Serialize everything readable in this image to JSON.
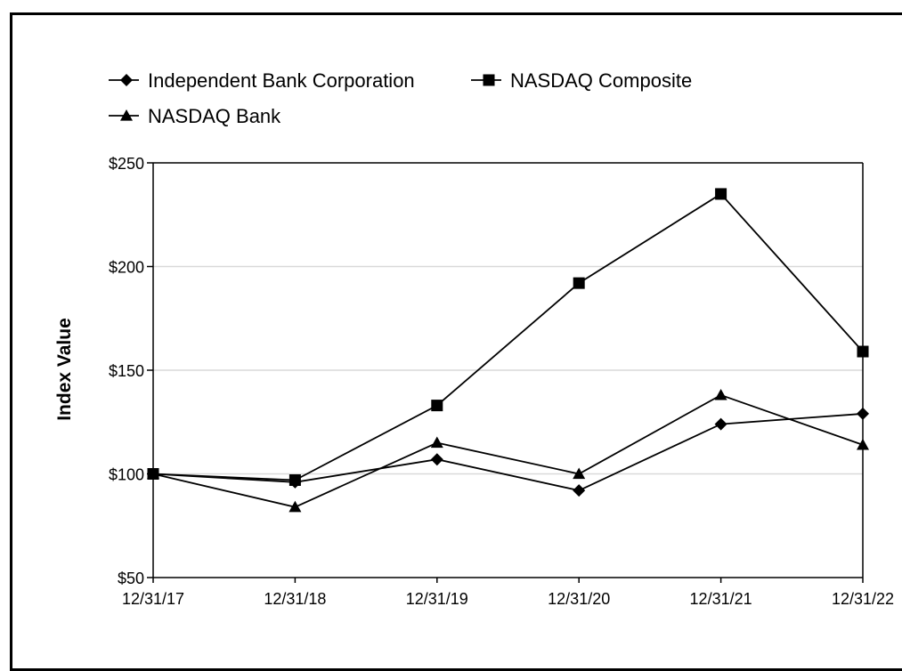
{
  "chart_data": {
    "type": "line",
    "title": "",
    "xlabel": "",
    "ylabel": "Index Value",
    "categories": [
      "12/31/17",
      "12/31/18",
      "12/31/19",
      "12/31/20",
      "12/31/21",
      "12/31/22"
    ],
    "ylim": [
      50,
      250
    ],
    "yticks": [
      50,
      100,
      150,
      200,
      250
    ],
    "ytick_labels": [
      "$50",
      "$100",
      "$150",
      "$200",
      "$250"
    ],
    "grid": true,
    "legend_position": "top-left",
    "series": [
      {
        "name": "Independent Bank Corporation",
        "marker": "diamond",
        "values": [
          100,
          96,
          107,
          92,
          124,
          129
        ]
      },
      {
        "name": "NASDAQ Composite",
        "marker": "square",
        "values": [
          100,
          97,
          133,
          192,
          235,
          159
        ]
      },
      {
        "name": "NASDAQ Bank",
        "marker": "triangle",
        "values": [
          100,
          84,
          115,
          100,
          138,
          114
        ]
      }
    ],
    "colors": {
      "line": "#000000",
      "grid": "#d9d9d9",
      "axis": "#000000"
    }
  }
}
